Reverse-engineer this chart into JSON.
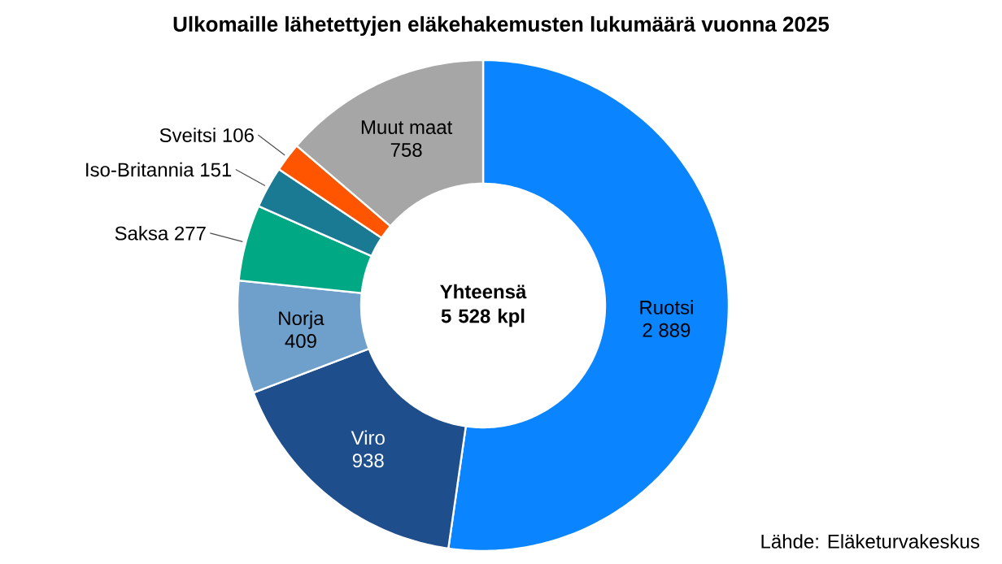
{
  "chart_data": {
    "type": "donut",
    "title": "Ulkomaille lähetettyjen eläkehakemusten lukumäärä vuonna 2025",
    "categories": [
      "Ruotsi",
      "Viro",
      "Norja",
      "Saksa",
      "Iso-Britannia",
      "Sveitsi",
      "Muut maat"
    ],
    "values": [
      2889,
      938,
      409,
      277,
      151,
      106,
      758
    ],
    "value_labels": [
      "2 889",
      "938",
      "409",
      "277",
      "151",
      "106",
      "758"
    ],
    "colors": [
      "#0a84ff",
      "#1f4e8c",
      "#6fa0cc",
      "#00a884",
      "#1a7a94",
      "#ff5500",
      "#a6a6a6"
    ],
    "annotations": [
      "Yhteensä 5 528 kpl",
      "Lähde: Eläketurvakeskus"
    ]
  }
}
